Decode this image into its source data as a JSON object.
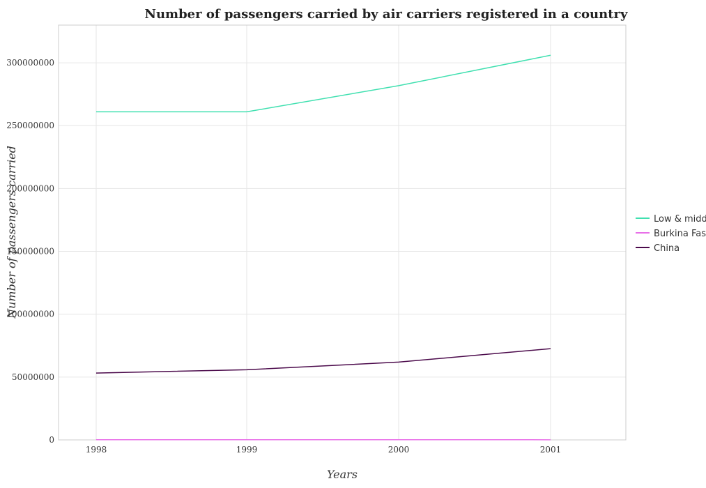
{
  "chart_data": {
    "type": "line",
    "title": "Number of passengers carried by air carriers registered in a country",
    "xlabel": "Years",
    "ylabel": "Number of passengers carried",
    "categories": [
      "1998",
      "1999",
      "2000",
      "2001"
    ],
    "ylim": [
      0,
      330000000
    ],
    "yticks": [
      0,
      50000000,
      100000000,
      150000000,
      200000000,
      250000000,
      300000000
    ],
    "ytick_labels": [
      "0",
      "50000000",
      "100000000",
      "150000000",
      "200000000",
      "250000000",
      "300000000"
    ],
    "grid": true,
    "legend_position": "right",
    "series": [
      {
        "name": "Low & middle income",
        "color": "#40e0b0",
        "values": [
          261000000,
          261000000,
          281800000,
          306000000
        ]
      },
      {
        "name": "Burkina Faso",
        "color": "#e870e8",
        "values": [
          140000,
          140000,
          140000,
          100000
        ]
      },
      {
        "name": "China",
        "color": "#4b0a4b",
        "values": [
          53200000,
          55800000,
          61900000,
          72600000
        ]
      }
    ]
  }
}
